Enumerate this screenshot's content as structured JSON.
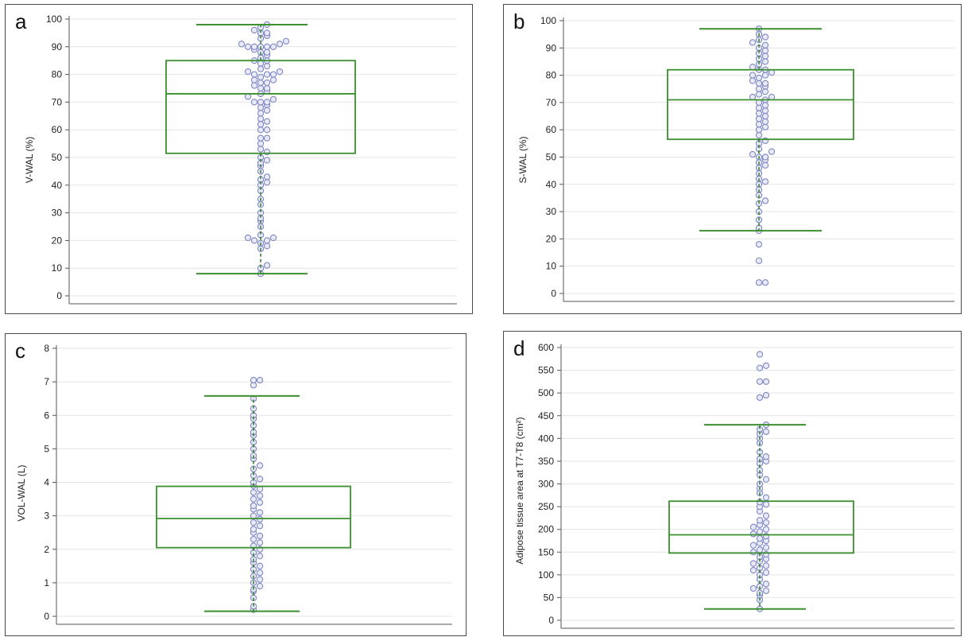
{
  "colors": {
    "box": "#3b8f2e",
    "dot_stroke": "#7f86c4",
    "dot_fill": "#e8eaf6",
    "grid": "#e4e4e4",
    "median_dots": "#2f7a2a"
  },
  "chart_data": [
    {
      "type": "box",
      "panel_label": "a",
      "ylabel": "V-WAL (%)",
      "ylim": [
        0,
        100
      ],
      "yticks": [
        0,
        10,
        20,
        30,
        40,
        50,
        60,
        70,
        80,
        90,
        100
      ],
      "whisker_low": 8,
      "q1": 51.5,
      "median": 73,
      "q3": 85,
      "whisker_high": 98,
      "points": [
        8,
        10,
        11,
        17,
        18,
        19,
        20,
        20,
        21,
        21,
        22,
        25,
        27,
        28,
        30,
        33,
        35,
        38,
        40,
        41,
        42,
        43,
        45,
        47,
        48,
        49,
        50,
        52,
        53,
        55,
        57,
        57,
        60,
        60,
        62,
        63,
        64,
        66,
        67,
        68,
        69,
        70,
        70,
        70,
        71,
        72,
        73,
        74,
        75,
        75,
        76,
        77,
        77,
        78,
        78,
        79,
        80,
        80,
        80,
        81,
        81,
        82,
        83,
        84,
        85,
        85,
        86,
        87,
        88,
        88,
        89,
        90,
        90,
        90,
        90,
        90,
        91,
        91,
        92,
        93,
        94,
        95,
        95,
        96,
        97,
        98
      ],
      "grid": true
    },
    {
      "type": "box",
      "panel_label": "b",
      "ylabel": "S-WAL (%)",
      "ylim": [
        0,
        100
      ],
      "yticks": [
        0,
        10,
        20,
        30,
        40,
        50,
        60,
        70,
        80,
        90,
        100
      ],
      "whisker_low": 23,
      "q1": 56.5,
      "median": 71,
      "q3": 82,
      "whisker_high": 97,
      "points": [
        4,
        4,
        12,
        18,
        23,
        24,
        27,
        30,
        33,
        34,
        36,
        38,
        40,
        41,
        42,
        44,
        46,
        47,
        48,
        49,
        50,
        50,
        51,
        52,
        53,
        55,
        56,
        58,
        60,
        61,
        62,
        63,
        64,
        65,
        66,
        67,
        68,
        69,
        70,
        71,
        72,
        72,
        73,
        74,
        75,
        76,
        77,
        77,
        78,
        79,
        80,
        80,
        81,
        82,
        82,
        83,
        84,
        85,
        86,
        87,
        88,
        89,
        90,
        91,
        92,
        93,
        94,
        95,
        97
      ],
      "grid": true
    },
    {
      "type": "box",
      "panel_label": "c",
      "ylabel": "VOL-WAL (L)",
      "ylim": [
        0,
        8
      ],
      "yticks": [
        0,
        1,
        2,
        3,
        4,
        5,
        6,
        7,
        8
      ],
      "whisker_low": 0.15,
      "q1": 2.05,
      "median": 2.92,
      "q3": 3.88,
      "whisker_high": 6.58,
      "points": [
        0.2,
        0.3,
        0.55,
        0.75,
        0.8,
        0.9,
        1.0,
        1.1,
        1.2,
        1.3,
        1.4,
        1.5,
        1.6,
        1.7,
        1.8,
        1.9,
        2.0,
        2.1,
        2.2,
        2.3,
        2.4,
        2.5,
        2.6,
        2.7,
        2.8,
        2.9,
        3.0,
        3.1,
        3.2,
        3.3,
        3.4,
        3.5,
        3.6,
        3.7,
        3.8,
        3.9,
        4.0,
        4.1,
        4.2,
        4.4,
        4.5,
        4.7,
        4.8,
        5.0,
        5.2,
        5.4,
        5.5,
        5.7,
        5.9,
        6.0,
        6.2,
        6.5,
        6.9,
        7.05,
        7.05
      ],
      "grid": true
    },
    {
      "type": "box",
      "panel_label": "d",
      "ylabel": "Adipose tissue area at T7-T8 (cm²)",
      "ylim": [
        0,
        600
      ],
      "yticks": [
        0,
        50,
        100,
        150,
        200,
        250,
        300,
        350,
        400,
        450,
        500,
        550,
        600
      ],
      "whisker_low": 25,
      "q1": 148,
      "median": 188,
      "q3": 262,
      "whisker_high": 430,
      "points": [
        25,
        45,
        55,
        60,
        65,
        70,
        75,
        80,
        90,
        100,
        105,
        110,
        115,
        120,
        125,
        130,
        135,
        140,
        145,
        150,
        155,
        160,
        165,
        170,
        175,
        180,
        185,
        190,
        195,
        200,
        205,
        210,
        215,
        220,
        230,
        240,
        250,
        255,
        260,
        270,
        280,
        290,
        300,
        310,
        320,
        330,
        345,
        350,
        355,
        360,
        370,
        390,
        400,
        410,
        415,
        420,
        430,
        490,
        495,
        525,
        525,
        555,
        560,
        585
      ],
      "grid": true
    }
  ]
}
